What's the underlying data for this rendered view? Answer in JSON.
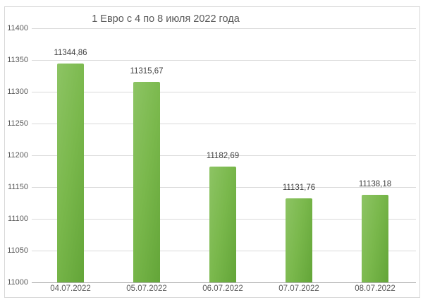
{
  "chart_data": {
    "type": "bar",
    "title": "1 Евро с 4 по 8 июля 2022 года",
    "categories": [
      "04.07.2022",
      "05.07.2022",
      "06.07.2022",
      "07.07.2022",
      "08.07.2022"
    ],
    "values": [
      11344.86,
      11315.67,
      11182.69,
      11131.76,
      11138.18
    ],
    "value_labels": [
      "11344,86",
      "11315,67",
      "11182,69",
      "11131,76",
      "11138,18"
    ],
    "xlabel": "",
    "ylabel": "",
    "ylim": [
      11000,
      11400
    ],
    "ytick_step": 50,
    "ytick_labels": [
      "11000",
      "11050",
      "11100",
      "11150",
      "11200",
      "11250",
      "11300",
      "11350",
      "11400"
    ],
    "grid": true,
    "legend": "none",
    "colors": {
      "bar_gradient_left": "#8dc464",
      "bar_gradient_mid": "#7ab84c",
      "bar_gradient_right": "#63a538",
      "gridline": "#dadada",
      "baseline": "#aeaeae",
      "title_text": "#595959",
      "axis_text": "#595959",
      "data_label_text": "#404040",
      "background": "#ffffff",
      "frame": "#d8d8d8"
    }
  }
}
